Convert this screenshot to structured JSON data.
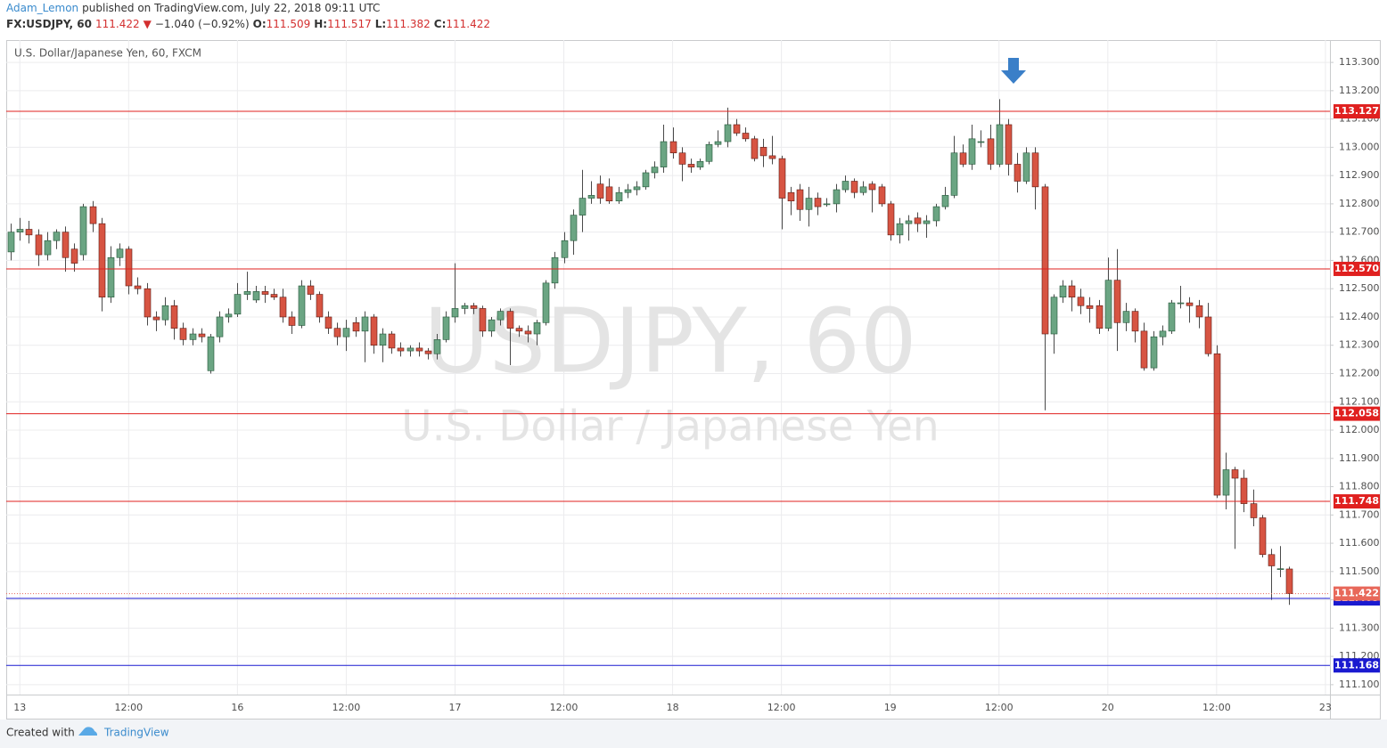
{
  "header": {
    "author": "Adam_Lemon",
    "published": "published on TradingView.com, July 22, 2018 09:11 UTC",
    "symbol": "FX:USDJPY, 60",
    "last": 111.422,
    "change": "−1.040 (−0.92%)",
    "ohlc": [
      {
        "label": "O:",
        "value": 111.509
      },
      {
        "label": "H:",
        "value": 111.517
      },
      {
        "label": "L:",
        "value": 111.382
      },
      {
        "label": "C:",
        "value": 111.422
      }
    ]
  },
  "footer": {
    "created": "Created with",
    "brand": "TradingView"
  },
  "chart_data": {
    "type": "candlestick",
    "title": "U.S. Dollar/Japanese Yen, 60, FXCM",
    "watermark": {
      "symbol": "USDJPY, 60",
      "description": "U.S. Dollar / Japanese Yen"
    },
    "up_color": "#6ba583",
    "down_color": "#d75442",
    "up_border": "#225437",
    "down_border": "#5b1a13",
    "wick_color": "#4a4a4a",
    "grid": true,
    "categories": [
      null,
      "13",
      null,
      null,
      null,
      null,
      null,
      null,
      null,
      null,
      null,
      null,
      null,
      "12:00",
      null,
      null,
      null,
      null,
      null,
      null,
      null,
      null,
      null,
      null,
      null,
      "16",
      null,
      null,
      null,
      null,
      null,
      null,
      null,
      null,
      null,
      null,
      null,
      "12:00",
      null,
      null,
      null,
      null,
      null,
      null,
      null,
      null,
      null,
      null,
      null,
      "17",
      null,
      null,
      null,
      null,
      null,
      null,
      null,
      null,
      null,
      null,
      null,
      "12:00",
      null,
      null,
      null,
      null,
      null,
      null,
      null,
      null,
      null,
      null,
      null,
      "18",
      null,
      null,
      null,
      null,
      null,
      null,
      null,
      null,
      null,
      null,
      null,
      "12:00",
      null,
      null,
      null,
      null,
      null,
      null,
      null,
      null,
      null,
      null,
      null,
      "19",
      null,
      null,
      null,
      null,
      null,
      null,
      null,
      null,
      null,
      null,
      null,
      "12:00",
      null,
      null,
      null,
      null,
      null,
      null,
      null,
      null,
      null,
      null,
      null,
      "20",
      null,
      null,
      null,
      null,
      null,
      null,
      null,
      null,
      null,
      null,
      null,
      "12:00",
      null,
      null,
      null,
      null,
      null,
      null,
      null,
      null,
      null,
      null,
      null,
      "23"
    ],
    "open": [
      112.63,
      112.7,
      112.71,
      112.69,
      112.62,
      112.67,
      112.7,
      112.64,
      112.62,
      112.79,
      112.73,
      112.47,
      112.61,
      112.64,
      112.51,
      112.5,
      112.4,
      112.39,
      112.44,
      112.36,
      112.32,
      112.34,
      112.21,
      112.33,
      112.4,
      112.41,
      112.48,
      112.46,
      112.49,
      112.48,
      112.47,
      112.4,
      112.37,
      112.51,
      112.48,
      112.4,
      112.36,
      112.33,
      112.38,
      112.35,
      112.4,
      112.3,
      112.34,
      112.29,
      112.28,
      112.29,
      112.28,
      112.27,
      112.32,
      112.4,
      112.43,
      112.44,
      112.43,
      112.35,
      112.39,
      112.42,
      112.36,
      112.35,
      112.34,
      112.38,
      112.52,
      112.61,
      112.67,
      112.76,
      112.82,
      112.87,
      112.86,
      112.81,
      112.84,
      112.85,
      112.86,
      112.91,
      112.93,
      113.02,
      112.98,
      112.94,
      112.93,
      112.95,
      113.01,
      113.02,
      113.08,
      113.05,
      113.03,
      113.0,
      112.97,
      112.96,
      112.84,
      112.85,
      112.78,
      112.82,
      112.8,
      112.8,
      112.85,
      112.88,
      112.84,
      112.87,
      112.86,
      112.8,
      112.69,
      112.73,
      112.75,
      112.73,
      112.74,
      112.79,
      112.83,
      112.98,
      112.94,
      113.02,
      113.03,
      112.94,
      113.08,
      112.94,
      112.88,
      112.98,
      112.86,
      112.34,
      112.47,
      112.51,
      112.47,
      112.44,
      112.44,
      112.36,
      112.53,
      112.38,
      112.42,
      112.35,
      112.22,
      112.33,
      112.35,
      112.45,
      112.45,
      112.44,
      112.4,
      112.27,
      111.77,
      111.86,
      111.83,
      111.74,
      111.69,
      111.56,
      111.51,
      111.509,
      null,
      null,
      null,
      null
    ],
    "high": [
      112.73,
      112.75,
      112.74,
      112.71,
      112.7,
      112.71,
      112.72,
      112.66,
      112.8,
      112.81,
      112.75,
      112.65,
      112.66,
      112.65,
      112.54,
      112.52,
      112.42,
      112.47,
      112.46,
      112.38,
      112.36,
      112.36,
      112.34,
      112.42,
      112.43,
      112.52,
      112.56,
      112.51,
      112.51,
      112.5,
      112.5,
      112.42,
      112.53,
      112.53,
      112.49,
      112.42,
      112.38,
      112.39,
      112.4,
      112.42,
      112.41,
      112.36,
      112.35,
      112.31,
      112.3,
      112.31,
      112.29,
      112.34,
      112.42,
      112.59,
      112.45,
      112.45,
      112.44,
      112.4,
      112.43,
      112.43,
      112.37,
      112.37,
      112.39,
      112.53,
      112.63,
      112.7,
      112.78,
      112.92,
      112.88,
      112.9,
      112.89,
      112.86,
      112.87,
      112.88,
      112.92,
      112.95,
      113.08,
      113.07,
      113.0,
      112.96,
      112.96,
      113.02,
      113.06,
      113.14,
      113.1,
      113.07,
      113.04,
      113.03,
      113.04,
      112.97,
      112.86,
      112.87,
      112.86,
      112.84,
      112.82,
      112.87,
      112.9,
      112.89,
      112.88,
      112.88,
      112.87,
      112.81,
      112.75,
      112.76,
      112.77,
      112.76,
      112.8,
      112.86,
      113.04,
      113.01,
      113.08,
      113.06,
      113.08,
      113.17,
      113.1,
      112.98,
      113.0,
      113.0,
      112.87,
      112.48,
      112.53,
      112.53,
      112.5,
      112.47,
      112.46,
      112.61,
      112.64,
      112.45,
      112.43,
      112.38,
      112.35,
      112.37,
      112.46,
      112.51,
      112.47,
      112.46,
      112.45,
      112.3,
      111.92,
      111.87,
      111.86,
      111.79,
      111.7,
      111.58,
      111.59,
      111.517,
      null,
      null,
      null,
      null
    ],
    "low": [
      112.6,
      112.67,
      112.66,
      112.58,
      112.6,
      112.64,
      112.56,
      112.56,
      112.6,
      112.7,
      112.42,
      112.45,
      112.58,
      112.48,
      112.48,
      112.37,
      112.35,
      112.37,
      112.32,
      112.3,
      112.3,
      112.31,
      112.2,
      112.31,
      112.38,
      112.4,
      112.46,
      112.45,
      112.45,
      112.46,
      112.38,
      112.34,
      112.36,
      112.46,
      112.38,
      112.34,
      112.3,
      112.28,
      112.33,
      112.24,
      112.27,
      112.24,
      112.27,
      112.26,
      112.26,
      112.26,
      112.25,
      112.25,
      112.31,
      112.38,
      112.41,
      112.41,
      112.33,
      112.33,
      112.37,
      112.23,
      112.33,
      112.31,
      112.3,
      112.37,
      112.5,
      112.59,
      112.62,
      112.7,
      112.8,
      112.8,
      112.8,
      112.8,
      112.82,
      112.83,
      112.85,
      112.89,
      112.91,
      112.96,
      112.88,
      112.91,
      112.92,
      112.94,
      113.0,
      113.0,
      113.04,
      113.02,
      112.95,
      112.93,
      112.94,
      112.71,
      112.76,
      112.74,
      112.72,
      112.76,
      112.79,
      112.77,
      112.84,
      112.82,
      112.83,
      112.77,
      112.79,
      112.67,
      112.66,
      112.67,
      112.7,
      112.68,
      112.72,
      112.78,
      112.82,
      112.93,
      112.92,
      113.0,
      112.92,
      112.93,
      112.9,
      112.84,
      112.87,
      112.78,
      112.07,
      112.27,
      112.45,
      112.42,
      112.41,
      112.38,
      112.34,
      112.35,
      112.28,
      112.35,
      112.31,
      112.21,
      112.21,
      112.3,
      112.34,
      112.43,
      112.38,
      112.36,
      112.26,
      111.76,
      111.72,
      111.58,
      111.71,
      111.66,
      111.55,
      111.4,
      111.48,
      111.382,
      null,
      null,
      null,
      null
    ],
    "close": [
      112.7,
      112.71,
      112.69,
      112.62,
      112.67,
      112.7,
      112.61,
      112.59,
      112.79,
      112.73,
      112.47,
      112.61,
      112.64,
      112.51,
      112.5,
      112.4,
      112.39,
      112.44,
      112.36,
      112.32,
      112.34,
      112.33,
      112.33,
      112.4,
      112.41,
      112.48,
      112.49,
      112.49,
      112.48,
      112.47,
      112.4,
      112.37,
      112.51,
      112.48,
      112.4,
      112.36,
      112.33,
      112.36,
      112.35,
      112.4,
      112.3,
      112.34,
      112.29,
      112.28,
      112.29,
      112.28,
      112.27,
      112.32,
      112.4,
      112.43,
      112.44,
      112.43,
      112.35,
      112.39,
      112.42,
      112.36,
      112.35,
      112.34,
      112.38,
      112.52,
      112.61,
      112.67,
      112.76,
      112.82,
      112.83,
      112.82,
      112.81,
      112.84,
      112.85,
      112.86,
      112.91,
      112.93,
      113.02,
      112.98,
      112.94,
      112.93,
      112.95,
      113.01,
      113.02,
      113.08,
      113.05,
      113.03,
      112.96,
      112.97,
      112.96,
      112.82,
      112.81,
      112.78,
      112.82,
      112.79,
      112.8,
      112.85,
      112.88,
      112.84,
      112.86,
      112.85,
      112.8,
      112.69,
      112.73,
      112.74,
      112.73,
      112.74,
      112.79,
      112.83,
      112.98,
      112.94,
      113.03,
      113.02,
      112.94,
      113.08,
      112.94,
      112.88,
      112.98,
      112.86,
      112.34,
      112.47,
      112.51,
      112.47,
      112.44,
      112.43,
      112.36,
      112.53,
      112.38,
      112.42,
      112.35,
      112.22,
      112.33,
      112.35,
      112.45,
      112.45,
      112.44,
      112.4,
      112.27,
      111.77,
      111.86,
      111.83,
      111.74,
      111.69,
      111.56,
      111.52,
      111.51,
      111.422,
      null,
      null,
      null,
      null
    ],
    "ylim": [
      111.065,
      113.379
    ],
    "yticks": [
      {
        "value": 111.1,
        "label": "111.100"
      },
      {
        "value": 111.2,
        "label": "111.200"
      },
      {
        "value": 111.3,
        "label": "111.300"
      },
      {
        "value": 111.4,
        "label": "111.400"
      },
      {
        "value": 111.5,
        "label": "111.500"
      },
      {
        "value": 111.6,
        "label": "111.600"
      },
      {
        "value": 111.7,
        "label": "111.700"
      },
      {
        "value": 111.8,
        "label": "111.800"
      },
      {
        "value": 111.9,
        "label": "111.900"
      },
      {
        "value": 112.0,
        "label": "112.000"
      },
      {
        "value": 112.1,
        "label": "112.100"
      },
      {
        "value": 112.2,
        "label": "112.200"
      },
      {
        "value": 112.3,
        "label": "112.300"
      },
      {
        "value": 112.4,
        "label": "112.400"
      },
      {
        "value": 112.5,
        "label": "112.500"
      },
      {
        "value": 112.6,
        "label": "112.600"
      },
      {
        "value": 112.7,
        "label": "112.700"
      },
      {
        "value": 112.8,
        "label": "112.800"
      },
      {
        "value": 112.9,
        "label": "112.900"
      },
      {
        "value": 113.0,
        "label": "113.000"
      },
      {
        "value": 113.1,
        "label": "113.100"
      },
      {
        "value": 113.2,
        "label": "113.200"
      },
      {
        "value": 113.3,
        "label": "113.300"
      }
    ],
    "levels": [
      {
        "value": 113.127,
        "color": "#e0201f"
      },
      {
        "value": 112.57,
        "label": "112.570",
        "color": "#e0201f"
      },
      {
        "value": 112.058,
        "color": "#e0201f"
      },
      {
        "value": 111.748,
        "color": "#e0201f"
      },
      {
        "value": 111.405,
        "color": "#1a1ad0"
      },
      {
        "value": 111.168,
        "color": "#1a1ad0"
      }
    ],
    "last_price": {
      "value": 111.422,
      "color": "#e8685a"
    }
  }
}
